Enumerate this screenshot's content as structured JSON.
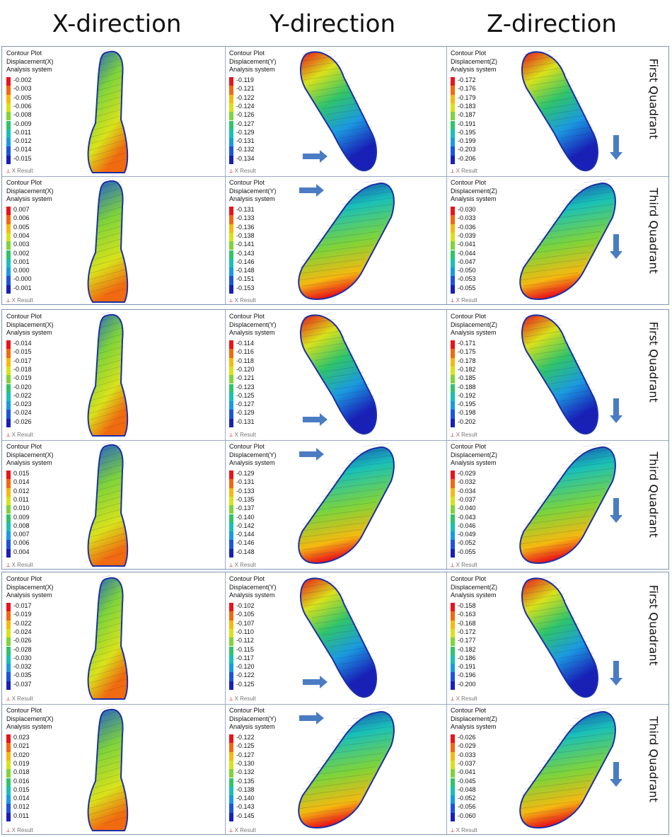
{
  "headers": [
    "X-direction",
    "Y-direction",
    "Z-direction"
  ],
  "legend": {
    "title": "Contour Plot",
    "system": "Analysis system",
    "result_label": "Result",
    "colors": [
      "#e8141a",
      "#f06a10",
      "#f5b90f",
      "#d9e21a",
      "#7ed43a",
      "#2fc46b",
      "#19c0b8",
      "#1b9ae0",
      "#1c55d8",
      "#1820b8"
    ]
  },
  "groups": [
    {
      "rows": [
        {
          "quadrant": "First Quadrant",
          "arrow": "down",
          "cells": [
            {
              "type": "Displacement(X)",
              "values": [
                "-0.002",
                "-0.003",
                "-0.005",
                "-0.006",
                "-0.008",
                "-0.009",
                "-0.011",
                "-0.012",
                "-0.014",
                "-0.015"
              ]
            },
            {
              "type": "Displacement(Y)",
              "values": [
                "-0.119",
                "-0.121",
                "-0.122",
                "-0.124",
                "-0.126",
                "-0.127",
                "-0.129",
                "-0.131",
                "-0.132",
                "-0.134"
              ]
            },
            {
              "type": "Displacement(Z)",
              "values": [
                "-0.172",
                "-0.176",
                "-0.179",
                "-0.183",
                "-0.187",
                "-0.191",
                "-0.195",
                "-0.199",
                "-0.203",
                "-0.206"
              ]
            }
          ]
        },
        {
          "quadrant": "Third Quadrant",
          "arrow": "down",
          "cells": [
            {
              "type": "Displacement(X)",
              "values": [
                "0.007",
                "0.006",
                "0.005",
                "0.004",
                "0.003",
                "0.002",
                "0.001",
                "0.000",
                "-0.000",
                "-0.001"
              ]
            },
            {
              "type": "Displacement(Y)",
              "values": [
                "-0.131",
                "-0.133",
                "-0.136",
                "-0.138",
                "-0.141",
                "-0.143",
                "-0.146",
                "-0.148",
                "-0.151",
                "-0.153"
              ]
            },
            {
              "type": "Displacement(Z)",
              "values": [
                "-0.030",
                "-0.033",
                "-0.036",
                "-0.039",
                "-0.041",
                "-0.044",
                "-0.047",
                "-0.050",
                "-0.053",
                "-0.055"
              ]
            }
          ]
        }
      ]
    },
    {
      "rows": [
        {
          "quadrant": "First Quadrant",
          "arrow": "down",
          "cells": [
            {
              "type": "Displacement(X)",
              "values": [
                "-0.014",
                "-0.015",
                "-0.017",
                "-0.018",
                "-0.019",
                "-0.020",
                "-0.022",
                "-0.023",
                "-0.024",
                "-0.026"
              ]
            },
            {
              "type": "Displacement(Y)",
              "values": [
                "-0.114",
                "-0.116",
                "-0.118",
                "-0.120",
                "-0.121",
                "-0.123",
                "-0.125",
                "-0.127",
                "-0.129",
                "-0.131"
              ]
            },
            {
              "type": "Displacement(Z)",
              "values": [
                "-0.171",
                "-0.175",
                "-0.178",
                "-0.182",
                "-0.185",
                "-0.188",
                "-0.192",
                "-0.195",
                "-0.198",
                "-0.202"
              ]
            }
          ]
        },
        {
          "quadrant": "Third Quadrant",
          "arrow": "down",
          "cells": [
            {
              "type": "Displacement(X)",
              "values": [
                "0.015",
                "0.014",
                "0.012",
                "0.011",
                "0.010",
                "0.009",
                "0.008",
                "0.007",
                "0.006",
                "0.004"
              ]
            },
            {
              "type": "Displacement(Y)",
              "values": [
                "-0.129",
                "-0.131",
                "-0.133",
                "-0.135",
                "-0.137",
                "-0.140",
                "-0.142",
                "-0.144",
                "-0.146",
                "-0.148"
              ]
            },
            {
              "type": "Displacement(Z)",
              "values": [
                "-0.029",
                "-0.032",
                "-0.034",
                "-0.037",
                "-0.040",
                "-0.043",
                "-0.046",
                "-0.049",
                "-0.052",
                "-0.055"
              ]
            }
          ]
        }
      ]
    },
    {
      "rows": [
        {
          "quadrant": "First Quadrant",
          "arrow": "down",
          "cells": [
            {
              "type": "Displacement(X)",
              "values": [
                "-0.017",
                "-0.019",
                "-0.022",
                "-0.024",
                "-0.026",
                "-0.028",
                "-0.030",
                "-0.032",
                "-0.035",
                "-0.037"
              ]
            },
            {
              "type": "Displacement(Y)",
              "values": [
                "-0.102",
                "-0.105",
                "-0.107",
                "-0.110",
                "-0.112",
                "-0.115",
                "-0.117",
                "-0.120",
                "-0.122",
                "-0.125"
              ]
            },
            {
              "type": "Displacement(Z)",
              "values": [
                "-0.158",
                "-0.163",
                "-0.168",
                "-0.172",
                "-0.177",
                "-0.182",
                "-0.186",
                "-0.191",
                "-0.196",
                "-0.200"
              ]
            }
          ]
        },
        {
          "quadrant": "Third Quadrant",
          "arrow": "down",
          "cells": [
            {
              "type": "Displacement(X)",
              "values": [
                "0.023",
                "0.021",
                "0.020",
                "0.019",
                "0.018",
                "0.016",
                "0.015",
                "0.014",
                "0.012",
                "0.011"
              ]
            },
            {
              "type": "Displacement(Y)",
              "values": [
                "-0.122",
                "-0.125",
                "-0.127",
                "-0.130",
                "-0.132",
                "-0.135",
                "-0.138",
                "-0.140",
                "-0.143",
                "-0.145"
              ]
            },
            {
              "type": "Displacement(Z)",
              "values": [
                "-0.026",
                "-0.029",
                "-0.033",
                "-0.037",
                "-0.041",
                "-0.045",
                "-0.048",
                "-0.052",
                "-0.056",
                "-0.060"
              ]
            }
          ]
        }
      ]
    }
  ]
}
